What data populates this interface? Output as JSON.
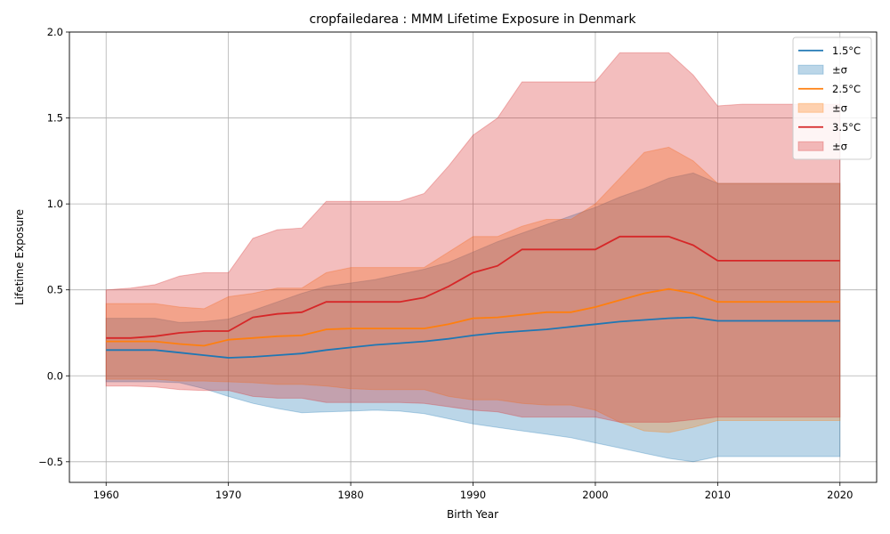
{
  "chart_data": {
    "type": "area",
    "title": "cropfailedarea : MMM Lifetime Exposure in Denmark",
    "xlabel": "Birth Year",
    "ylabel": "Lifetime Exposure",
    "xlim": [
      1957,
      2023
    ],
    "ylim": [
      -0.62,
      2.0
    ],
    "xticks": [
      1960,
      1970,
      1980,
      1990,
      2000,
      2010,
      2020
    ],
    "xtick_labels": [
      "1960",
      "1970",
      "1980",
      "1990",
      "2000",
      "2010",
      "2020"
    ],
    "yticks": [
      -0.5,
      0.0,
      0.5,
      1.0,
      1.5,
      2.0
    ],
    "ytick_labels": [
      "−0.5",
      "0.0",
      "0.5",
      "1.0",
      "1.5",
      "2.0"
    ],
    "grid": true,
    "legend_position": "top-right",
    "series": [
      {
        "name": "1.5°C",
        "band_label": "±σ",
        "color": "#1f77b4",
        "x": [
          1960,
          1962,
          1964,
          1966,
          1968,
          1970,
          1972,
          1974,
          1976,
          1978,
          1980,
          1982,
          1984,
          1986,
          1988,
          1990,
          1992,
          1994,
          1996,
          1998,
          2000,
          2002,
          2004,
          2006,
          2008,
          2010,
          2012,
          2014,
          2016,
          2018,
          2020
        ],
        "mean": [
          0.15,
          0.15,
          0.15,
          0.135,
          0.12,
          0.105,
          0.11,
          0.12,
          0.13,
          0.15,
          0.165,
          0.18,
          0.19,
          0.2,
          0.215,
          0.235,
          0.25,
          0.26,
          0.27,
          0.285,
          0.3,
          0.315,
          0.325,
          0.335,
          0.34,
          0.32,
          0.32,
          0.32,
          0.32,
          0.32,
          0.32
        ],
        "upper": [
          0.335,
          0.335,
          0.335,
          0.31,
          0.315,
          0.33,
          0.38,
          0.43,
          0.48,
          0.52,
          0.54,
          0.56,
          0.59,
          0.62,
          0.66,
          0.72,
          0.78,
          0.83,
          0.88,
          0.93,
          0.98,
          1.04,
          1.09,
          1.15,
          1.18,
          1.12,
          1.12,
          1.12,
          1.12,
          1.12,
          1.12
        ],
        "lower": [
          -0.035,
          -0.035,
          -0.035,
          -0.04,
          -0.075,
          -0.12,
          -0.16,
          -0.19,
          -0.215,
          -0.21,
          -0.205,
          -0.2,
          -0.205,
          -0.22,
          -0.25,
          -0.28,
          -0.3,
          -0.32,
          -0.34,
          -0.36,
          -0.39,
          -0.42,
          -0.45,
          -0.48,
          -0.5,
          -0.47,
          -0.47,
          -0.47,
          -0.47,
          -0.47,
          -0.47
        ]
      },
      {
        "name": "2.5°C",
        "band_label": "±σ",
        "color": "#ff7f0e",
        "x": [
          1960,
          1962,
          1964,
          1966,
          1968,
          1970,
          1972,
          1974,
          1976,
          1978,
          1980,
          1982,
          1984,
          1986,
          1988,
          1990,
          1992,
          1994,
          1996,
          1998,
          2000,
          2002,
          2004,
          2006,
          2008,
          2010,
          2012,
          2014,
          2016,
          2018,
          2020
        ],
        "mean": [
          0.2,
          0.2,
          0.2,
          0.185,
          0.175,
          0.21,
          0.22,
          0.23,
          0.235,
          0.27,
          0.275,
          0.275,
          0.275,
          0.275,
          0.3,
          0.335,
          0.34,
          0.355,
          0.37,
          0.37,
          0.4,
          0.44,
          0.48,
          0.505,
          0.48,
          0.43,
          0.43,
          0.43,
          0.43,
          0.43,
          0.43
        ],
        "upper": [
          0.42,
          0.42,
          0.42,
          0.4,
          0.39,
          0.46,
          0.48,
          0.51,
          0.51,
          0.6,
          0.63,
          0.63,
          0.63,
          0.63,
          0.72,
          0.81,
          0.81,
          0.87,
          0.91,
          0.91,
          1.0,
          1.15,
          1.3,
          1.33,
          1.25,
          1.12,
          1.12,
          1.12,
          1.12,
          1.12,
          1.12
        ],
        "lower": [
          -0.02,
          -0.02,
          -0.02,
          -0.03,
          -0.03,
          -0.035,
          -0.04,
          -0.05,
          -0.05,
          -0.06,
          -0.075,
          -0.08,
          -0.08,
          -0.08,
          -0.12,
          -0.14,
          -0.14,
          -0.16,
          -0.17,
          -0.17,
          -0.2,
          -0.27,
          -0.32,
          -0.33,
          -0.3,
          -0.26,
          -0.26,
          -0.26,
          -0.26,
          -0.26,
          -0.26
        ]
      },
      {
        "name": "3.5°C",
        "band_label": "±σ",
        "color": "#d62728",
        "x": [
          1960,
          1962,
          1964,
          1966,
          1968,
          1970,
          1972,
          1974,
          1976,
          1978,
          1980,
          1982,
          1984,
          1986,
          1988,
          1990,
          1992,
          1994,
          1996,
          1998,
          2000,
          2002,
          2004,
          2006,
          2008,
          2010,
          2012,
          2014,
          2016,
          2018,
          2020
        ],
        "mean": [
          0.22,
          0.22,
          0.23,
          0.25,
          0.26,
          0.26,
          0.34,
          0.36,
          0.37,
          0.43,
          0.43,
          0.43,
          0.43,
          0.455,
          0.52,
          0.6,
          0.64,
          0.735,
          0.735,
          0.735,
          0.735,
          0.81,
          0.81,
          0.81,
          0.76,
          0.67,
          0.67,
          0.67,
          0.67,
          0.67,
          0.67
        ],
        "upper": [
          0.5,
          0.51,
          0.53,
          0.58,
          0.6,
          0.6,
          0.8,
          0.85,
          0.86,
          1.015,
          1.015,
          1.015,
          1.015,
          1.06,
          1.22,
          1.4,
          1.5,
          1.71,
          1.71,
          1.71,
          1.71,
          1.88,
          1.88,
          1.88,
          1.75,
          1.57,
          1.58,
          1.58,
          1.58,
          1.58,
          1.58
        ],
        "lower": [
          -0.06,
          -0.06,
          -0.065,
          -0.08,
          -0.085,
          -0.085,
          -0.12,
          -0.13,
          -0.13,
          -0.155,
          -0.155,
          -0.155,
          -0.155,
          -0.16,
          -0.18,
          -0.2,
          -0.21,
          -0.24,
          -0.24,
          -0.24,
          -0.24,
          -0.27,
          -0.27,
          -0.27,
          -0.255,
          -0.24,
          -0.24,
          -0.24,
          -0.24,
          -0.24,
          -0.24
        ]
      }
    ]
  }
}
